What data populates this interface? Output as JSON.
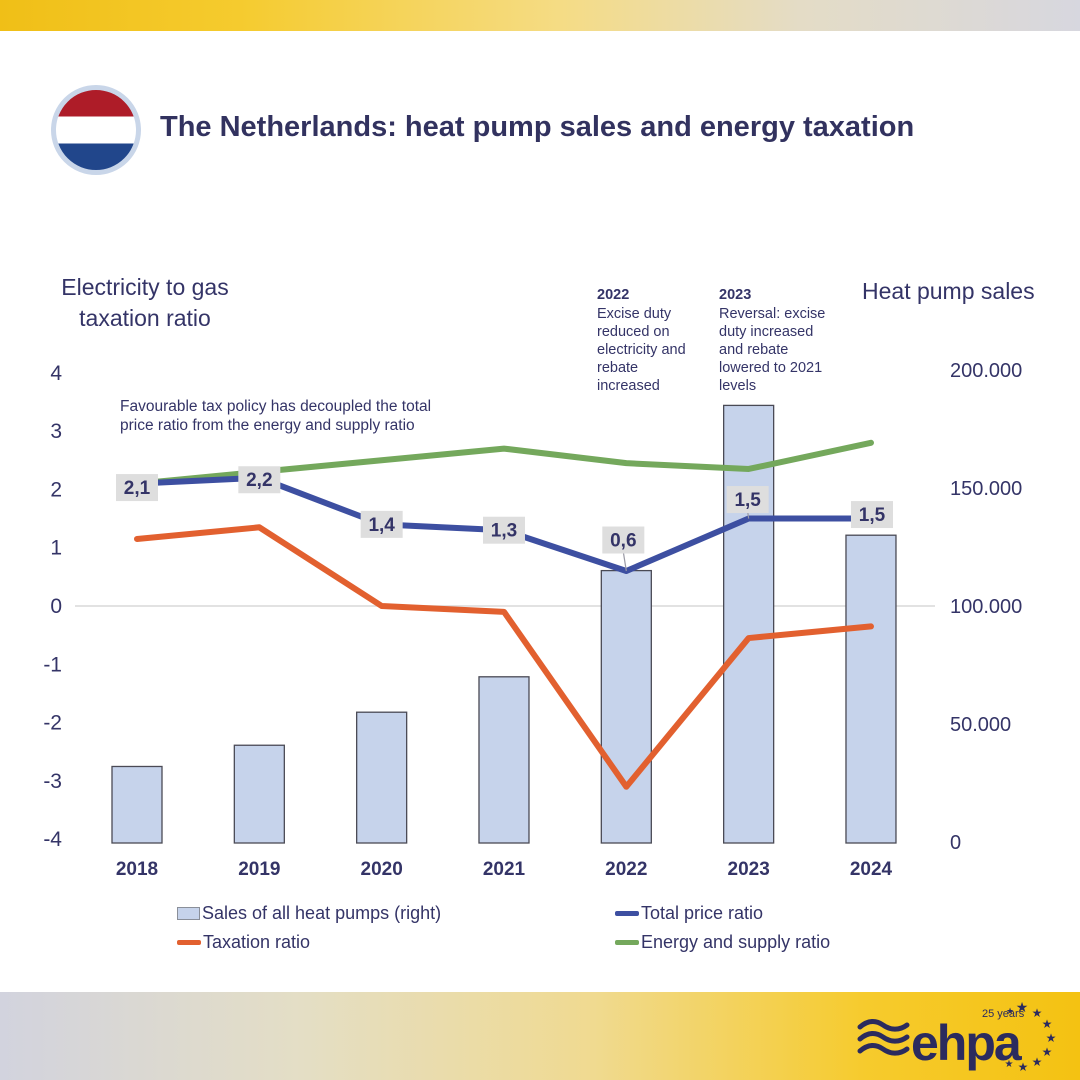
{
  "header": {
    "title": "The Netherlands: heat pump sales and energy taxation",
    "flag_icon": "netherlands-flag"
  },
  "axes": {
    "left_title_line1": "Electricity to gas",
    "left_title_line2": "taxation ratio",
    "right_title": "Heat pump sales"
  },
  "annotations": {
    "note": "Favourable tax policy has decoupled the total price ratio from the energy and supply ratio",
    "a2022_year": "2022",
    "a2022_text": "Excise duty reduced on electricity and rebate increased",
    "a2023_year": "2023",
    "a2023_text": "Reversal: excise duty increased and rebate lowered to 2021 levels"
  },
  "legend": {
    "bars": "Sales of all heat pumps (right)",
    "total_price": "Total price ratio",
    "taxation": "Taxation ratio",
    "energy_supply": "Energy and supply ratio"
  },
  "footer": {
    "logo_text": "ehpa",
    "logo_tagline": "25 years"
  },
  "colors": {
    "navy_text": "#343467",
    "bar_fill": "#C6D3EB",
    "bar_border": "#4a4a55",
    "blue_line": "#3D4FA1",
    "orange_line": "#E2602F",
    "green_line": "#74A85C",
    "label_box": "#DEDEDE",
    "gridline": "#D9D9D9"
  },
  "chart_data": {
    "type": "bar+line combo",
    "categories": [
      "2018",
      "2019",
      "2020",
      "2021",
      "2022",
      "2023",
      "2024"
    ],
    "bar_series": {
      "name": "Sales of all heat pumps (right)",
      "axis": "right",
      "values": [
        32000,
        41000,
        55000,
        70000,
        115000,
        185000,
        130000
      ]
    },
    "line_series": [
      {
        "name": "Total price ratio",
        "color_key": "blue_line",
        "values": [
          2.1,
          2.2,
          1.4,
          1.3,
          0.6,
          1.5,
          1.5
        ],
        "point_labels": [
          "2,1",
          "2,2",
          "1,4",
          "1,3",
          "0,6",
          "1,5",
          "1,5"
        ]
      },
      {
        "name": "Taxation ratio",
        "color_key": "orange_line",
        "values": [
          1.15,
          1.35,
          0.0,
          -0.1,
          -3.1,
          -0.55,
          -0.35
        ]
      },
      {
        "name": "Energy and supply ratio",
        "color_key": "green_line",
        "values": [
          2.1,
          2.3,
          2.5,
          2.7,
          2.45,
          2.35,
          2.8
        ]
      }
    ],
    "left_axis": {
      "min": -4,
      "max": 4,
      "ticks": [
        4,
        3,
        2,
        1,
        0,
        -1,
        -2,
        -3,
        -4
      ]
    },
    "right_axis": {
      "min": 0,
      "max": 200000,
      "tick_labels": [
        "200.000",
        "150.000",
        "100.000",
        "50.000",
        "0"
      ],
      "tick_values": [
        200000,
        150000,
        100000,
        50000,
        0
      ]
    },
    "grid": "horizontal zero line only",
    "legend_position": "bottom"
  }
}
